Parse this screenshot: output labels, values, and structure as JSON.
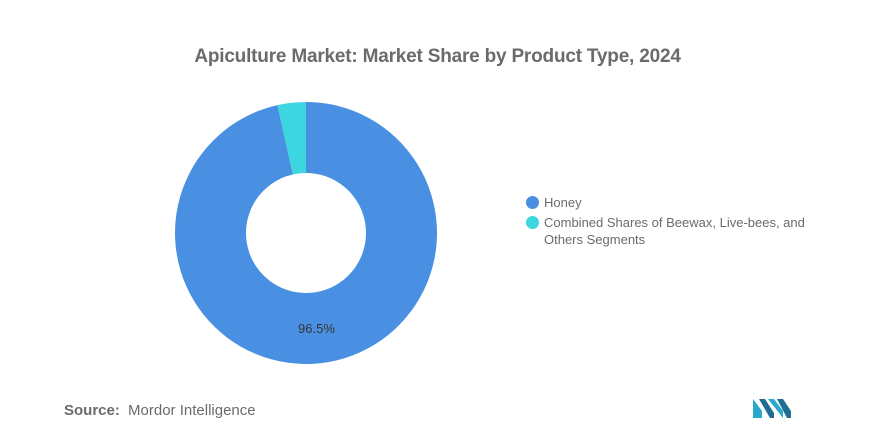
{
  "title": "Apiculture Market: Market Share by Product Type, 2024",
  "chart_data": {
    "type": "pie",
    "variant": "donut",
    "title": "Apiculture Market: Market Share by Product Type, 2024",
    "series": [
      {
        "name": "Honey",
        "value": 96.5,
        "label": "96.5%",
        "color": "#4a90e2"
      },
      {
        "name": "Combined Shares of Beewax, Live-bees, and Others Segments",
        "value": 3.5,
        "label": "",
        "color": "#3dd5e0"
      }
    ],
    "legend_position": "right"
  },
  "source": {
    "label": "Source:",
    "text": "Mordor Intelligence"
  },
  "logo": {
    "icon": "mordor-intelligence-logo-icon",
    "color": "#2aa8c9"
  }
}
